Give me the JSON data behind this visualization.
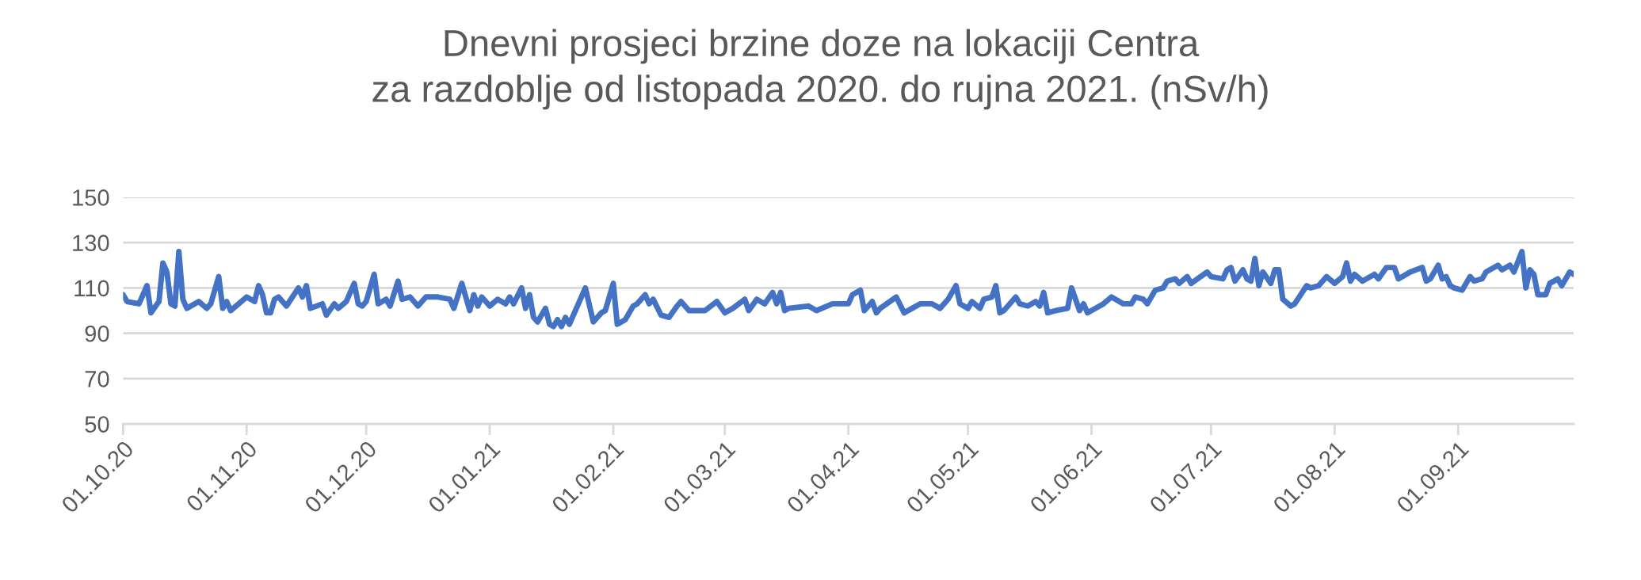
{
  "chart_data": {
    "type": "line",
    "title": "Dnevni prosjeci brzine doze na lokaciji Centra\nza razdoblje od listopada 2020. do rujna 2021. (nSv/h)",
    "x": [
      "2020-10-01",
      "2020-10-02",
      "2020-10-05",
      "2020-10-07",
      "2020-10-08",
      "2020-10-10",
      "2020-10-11",
      "2020-10-12",
      "2020-10-13",
      "2020-10-14",
      "2020-10-15",
      "2020-10-16",
      "2020-10-17",
      "2020-10-20",
      "2020-10-22",
      "2020-10-23",
      "2020-10-25",
      "2020-10-26",
      "2020-10-27",
      "2020-10-28",
      "2020-11-01",
      "2020-11-03",
      "2020-11-04",
      "2020-11-05",
      "2020-11-06",
      "2020-11-07",
      "2020-11-08",
      "2020-11-09",
      "2020-11-11",
      "2020-11-14",
      "2020-11-15",
      "2020-11-16",
      "2020-11-17",
      "2020-11-20",
      "2020-11-21",
      "2020-11-23",
      "2020-11-24",
      "2020-11-26",
      "2020-11-28",
      "2020-11-29",
      "2020-11-30",
      "2020-12-01",
      "2020-12-03",
      "2020-12-04",
      "2020-12-06",
      "2020-12-07",
      "2020-12-09",
      "2020-12-10",
      "2020-12-12",
      "2020-12-14",
      "2020-12-16",
      "2020-12-19",
      "2020-12-22",
      "2020-12-23",
      "2020-12-25",
      "2020-12-27",
      "2020-12-28",
      "2020-12-29",
      "2020-12-30",
      "2021-01-01",
      "2021-01-03",
      "2021-01-05",
      "2021-01-06",
      "2021-01-07",
      "2021-01-09",
      "2021-01-10",
      "2021-01-11",
      "2021-01-12",
      "2021-01-13",
      "2021-01-15",
      "2021-01-16",
      "2021-01-17",
      "2021-01-18",
      "2021-01-19",
      "2021-01-20",
      "2021-01-21",
      "2021-01-25",
      "2021-01-27",
      "2021-01-29",
      "2021-01-30",
      "2021-02-01",
      "2021-02-02",
      "2021-02-04",
      "2021-02-06",
      "2021-02-07",
      "2021-02-09",
      "2021-02-10",
      "2021-02-11",
      "2021-02-13",
      "2021-02-15",
      "2021-02-17",
      "2021-02-18",
      "2021-02-20",
      "2021-02-24",
      "2021-02-27",
      "2021-03-01",
      "2021-03-03",
      "2021-03-06",
      "2021-03-07",
      "2021-03-09",
      "2021-03-11",
      "2021-03-13",
      "2021-03-14",
      "2021-03-15",
      "2021-03-16",
      "2021-03-17",
      "2021-03-22",
      "2021-03-24",
      "2021-03-28",
      "2021-04-01",
      "2021-04-02",
      "2021-04-04",
      "2021-04-05",
      "2021-04-07",
      "2021-04-08",
      "2021-04-09",
      "2021-04-13",
      "2021-04-15",
      "2021-04-17",
      "2021-04-19",
      "2021-04-22",
      "2021-04-24",
      "2021-04-26",
      "2021-04-28",
      "2021-04-29",
      "2021-05-01",
      "2021-05-02",
      "2021-05-04",
      "2021-05-05",
      "2021-05-07",
      "2021-05-08",
      "2021-05-09",
      "2021-05-10",
      "2021-05-13",
      "2021-05-14",
      "2021-05-16",
      "2021-05-18",
      "2021-05-19",
      "2021-05-20",
      "2021-05-21",
      "2021-05-23",
      "2021-05-26",
      "2021-05-27",
      "2021-05-29",
      "2021-05-30",
      "2021-05-31",
      "2021-06-04",
      "2021-06-06",
      "2021-06-09",
      "2021-06-11",
      "2021-06-12",
      "2021-06-14",
      "2021-06-15",
      "2021-06-17",
      "2021-06-19",
      "2021-06-20",
      "2021-06-22",
      "2021-06-23",
      "2021-06-25",
      "2021-06-26",
      "2021-06-30",
      "2021-07-01",
      "2021-07-04",
      "2021-07-05",
      "2021-07-06",
      "2021-07-07",
      "2021-07-09",
      "2021-07-10",
      "2021-07-11",
      "2021-07-12",
      "2021-07-13",
      "2021-07-14",
      "2021-07-16",
      "2021-07-17",
      "2021-07-18",
      "2021-07-19",
      "2021-07-21",
      "2021-07-22",
      "2021-07-25",
      "2021-07-26",
      "2021-07-28",
      "2021-07-30",
      "2021-08-01",
      "2021-08-03",
      "2021-08-04",
      "2021-08-05",
      "2021-08-06",
      "2021-08-08",
      "2021-08-11",
      "2021-08-12",
      "2021-08-14",
      "2021-08-16",
      "2021-08-17",
      "2021-08-20",
      "2021-08-23",
      "2021-08-24",
      "2021-08-25",
      "2021-08-27",
      "2021-08-28",
      "2021-08-29",
      "2021-08-30",
      "2021-08-31",
      "2021-09-02",
      "2021-09-04",
      "2021-09-05",
      "2021-09-07",
      "2021-09-08",
      "2021-09-11",
      "2021-09-12",
      "2021-09-14",
      "2021-09-15",
      "2021-09-17",
      "2021-09-18",
      "2021-09-19",
      "2021-09-20",
      "2021-09-21",
      "2021-09-23",
      "2021-09-24",
      "2021-09-26",
      "2021-09-27",
      "2021-09-29",
      "2021-09-30"
    ],
    "series": [
      {
        "color": "#4472c4",
        "values": [
          107,
          104,
          103,
          111,
          99,
          104,
          121,
          117,
          103,
          102,
          126,
          105,
          101,
          104,
          101,
          103,
          115,
          101,
          104,
          100,
          106,
          104,
          111,
          107,
          99,
          99,
          105,
          106,
          102,
          110,
          106,
          111,
          101,
          103,
          98,
          103,
          101,
          104,
          112,
          103,
          102,
          104,
          116,
          103,
          105,
          102,
          113,
          105,
          106,
          102,
          106,
          106,
          105,
          101,
          112,
          100,
          107,
          102,
          106,
          102,
          105,
          103,
          106,
          103,
          110,
          101,
          107,
          97,
          95,
          101,
          94,
          93,
          96,
          93,
          97,
          94,
          110,
          95,
          99,
          100,
          112,
          94,
          96,
          102,
          103,
          107,
          103,
          105,
          98,
          97,
          102,
          104,
          100,
          100,
          104,
          99,
          101,
          105,
          100,
          105,
          103,
          108,
          103,
          108,
          100,
          101,
          102,
          100,
          103,
          103,
          107,
          109,
          100,
          104,
          99,
          101,
          106,
          99,
          101,
          103,
          103,
          101,
          105,
          111,
          103,
          101,
          104,
          101,
          105,
          106,
          111,
          99,
          100,
          106,
          103,
          102,
          104,
          102,
          108,
          99,
          100,
          101,
          110,
          100,
          103,
          99,
          103,
          106,
          103,
          103,
          106,
          105,
          103,
          109,
          110,
          113,
          114,
          112,
          115,
          112,
          117,
          115,
          114,
          118,
          119,
          113,
          118,
          114,
          113,
          123,
          111,
          117,
          112,
          118,
          118,
          105,
          102,
          103,
          111,
          110,
          111,
          115,
          112,
          115,
          121,
          113,
          116,
          113,
          116,
          114,
          119,
          119,
          114,
          117,
          119,
          113,
          114,
          120,
          114,
          115,
          111,
          110,
          109,
          115,
          113,
          114,
          117,
          120,
          118,
          120,
          117,
          126,
          110,
          118,
          116,
          107,
          107,
          112,
          114,
          111,
          117,
          116
        ]
      }
    ],
    "xlim": [
      "2020-10-01",
      "2021-09-30"
    ],
    "xticks": [
      {
        "value": "2020-10-01",
        "label": "01.10.20"
      },
      {
        "value": "2020-11-01",
        "label": "01.11.20"
      },
      {
        "value": "2020-12-01",
        "label": "01.12.20"
      },
      {
        "value": "2021-01-01",
        "label": "01.01.21"
      },
      {
        "value": "2021-02-01",
        "label": "01.02.21"
      },
      {
        "value": "2021-03-01",
        "label": "01.03.21"
      },
      {
        "value": "2021-04-01",
        "label": "01.04.21"
      },
      {
        "value": "2021-05-01",
        "label": "01.05.21"
      },
      {
        "value": "2021-06-01",
        "label": "01.06.21"
      },
      {
        "value": "2021-07-01",
        "label": "01.07.21"
      },
      {
        "value": "2021-08-01",
        "label": "01.08.21"
      },
      {
        "value": "2021-09-01",
        "label": "01.09.21"
      }
    ],
    "ylim": [
      50,
      150
    ],
    "yticks": [
      50,
      70,
      90,
      110,
      130,
      150
    ],
    "grid": "y",
    "line_style": "solid"
  }
}
